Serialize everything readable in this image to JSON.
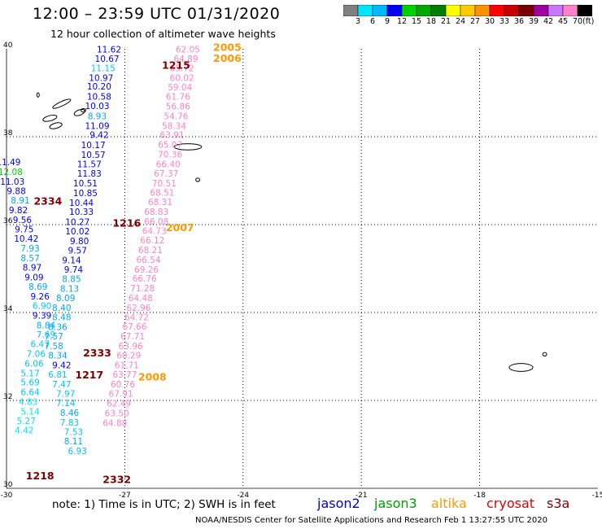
{
  "header": {
    "title": "12:00 – 23:59 UTC 01/31/2020",
    "subtitle": "12 hour collection of altimeter wave heights"
  },
  "legend": {
    "colors": [
      "#808080",
      "#00e5ff",
      "#00b8ff",
      "#0000ff",
      "#00d000",
      "#00a800",
      "#008000",
      "#ffff00",
      "#ffc800",
      "#ff9100",
      "#ff0000",
      "#c80000",
      "#780000",
      "#a000a0",
      "#c878ff",
      "#ff82c8",
      "#000000"
    ],
    "labels": [
      "3",
      "6",
      "9",
      "12",
      "15",
      "18",
      "21",
      "24",
      "27",
      "30",
      "33",
      "36",
      "39",
      "42",
      "45",
      "70"
    ],
    "unit": "(ft)"
  },
  "axes": {
    "x_ticks": [
      "-30",
      "-27",
      "-24",
      "-21",
      "-18",
      "-15"
    ],
    "y_ticks": [
      "40",
      "38",
      "36",
      "34",
      "32",
      "30"
    ]
  },
  "footer": {
    "note": "note: 1) Time is in UTC; 2) SWH is in feet",
    "credit": "NOAA/NESDIS Center for Satellite Applications and Research   Feb  1 13:27:55 UTC 2020"
  },
  "satellites": [
    {
      "name": "jason2",
      "color": "#0000d0"
    },
    {
      "name": "jason3",
      "color": "#00a000"
    },
    {
      "name": "altika",
      "color": "#ff9900"
    },
    {
      "name": "cryosat",
      "color": "#e00000"
    },
    {
      "name": "s3a",
      "color": "#800000"
    }
  ],
  "map_data": {
    "extent": {
      "lon": [
        -30,
        -15
      ],
      "lat": [
        30,
        40
      ]
    },
    "track_times": [
      {
        "text": "2005",
        "lon": -24.4,
        "lat": 39.95,
        "color": "#ff9900"
      },
      {
        "text": "2006",
        "lon": -24.4,
        "lat": 39.7,
        "color": "#ff9900"
      },
      {
        "text": "1215",
        "lon": -25.7,
        "lat": 39.55,
        "color": "#800000"
      },
      {
        "text": "2334",
        "lon": -28.95,
        "lat": 36.45,
        "color": "#800000"
      },
      {
        "text": "1216",
        "lon": -26.95,
        "lat": 35.95,
        "color": "#800000"
      },
      {
        "text": "2007",
        "lon": -25.6,
        "lat": 35.85,
        "color": "#ff9900"
      },
      {
        "text": "2333",
        "lon": -27.7,
        "lat": 33.0,
        "color": "#800000"
      },
      {
        "text": "1217",
        "lon": -27.9,
        "lat": 32.5,
        "color": "#800000"
      },
      {
        "text": "2008",
        "lon": -26.3,
        "lat": 32.45,
        "color": "#ff9900"
      },
      {
        "text": "1218",
        "lon": -29.15,
        "lat": 30.2,
        "color": "#800000"
      },
      {
        "text": "2332",
        "lon": -27.2,
        "lat": 30.12,
        "color": "#800000"
      }
    ],
    "swh_obs": [
      {
        "v": "11.62",
        "lon": -27.4,
        "lat": 39.92,
        "c": "#0000ff"
      },
      {
        "v": "10.67",
        "lon": -27.45,
        "lat": 39.7,
        "c": "#0000ff"
      },
      {
        "v": "11.15",
        "lon": -27.55,
        "lat": 39.49,
        "c": "#00c8ff"
      },
      {
        "v": "10.97",
        "lon": -27.6,
        "lat": 39.27,
        "c": "#0000ff"
      },
      {
        "v": "10.20",
        "lon": -27.65,
        "lat": 39.07,
        "c": "#0000ff"
      },
      {
        "v": "10.58",
        "lon": -27.65,
        "lat": 38.84,
        "c": "#0000ff"
      },
      {
        "v": "10.03",
        "lon": -27.7,
        "lat": 38.63,
        "c": "#0000ff"
      },
      {
        "v": "8.93",
        "lon": -27.7,
        "lat": 38.4,
        "c": "#00a8ff"
      },
      {
        "v": "11.09",
        "lon": -27.7,
        "lat": 38.18,
        "c": "#0000ff"
      },
      {
        "v": "9.42",
        "lon": -27.65,
        "lat": 37.97,
        "c": "#0000ff"
      },
      {
        "v": "10.17",
        "lon": -27.8,
        "lat": 37.74,
        "c": "#0000ff"
      },
      {
        "v": "10.57",
        "lon": -27.8,
        "lat": 37.52,
        "c": "#0000ff"
      },
      {
        "v": "11.57",
        "lon": -27.9,
        "lat": 37.31,
        "c": "#0000ff"
      },
      {
        "v": "11.83",
        "lon": -27.9,
        "lat": 37.09,
        "c": "#0000ff"
      },
      {
        "v": "10.51",
        "lon": -28.0,
        "lat": 36.87,
        "c": "#0000ff"
      },
      {
        "v": "10.85",
        "lon": -28.0,
        "lat": 36.65,
        "c": "#0000ff"
      },
      {
        "v": "10.44",
        "lon": -28.1,
        "lat": 36.43,
        "c": "#0000ff"
      },
      {
        "v": "10.33",
        "lon": -28.1,
        "lat": 36.22,
        "c": "#0000ff"
      },
      {
        "v": "10.27",
        "lon": -28.2,
        "lat": 35.99,
        "c": "#0000ff"
      },
      {
        "v": "10.02",
        "lon": -28.2,
        "lat": 35.78,
        "c": "#0000ff"
      },
      {
        "v": "9.80",
        "lon": -28.15,
        "lat": 35.56,
        "c": "#0000ff"
      },
      {
        "v": "9.57",
        "lon": -28.2,
        "lat": 35.34,
        "c": "#0000ff"
      },
      {
        "v": "9.14",
        "lon": -28.35,
        "lat": 35.12,
        "c": "#0000ff"
      },
      {
        "v": "9.74",
        "lon": -28.3,
        "lat": 34.91,
        "c": "#0000ff"
      },
      {
        "v": "8.85",
        "lon": -28.35,
        "lat": 34.69,
        "c": "#00a8ff"
      },
      {
        "v": "8.13",
        "lon": -28.4,
        "lat": 34.47,
        "c": "#00a8ff"
      },
      {
        "v": "8.09",
        "lon": -28.5,
        "lat": 34.26,
        "c": "#00a8ff"
      },
      {
        "v": "8.40",
        "lon": -28.6,
        "lat": 34.04,
        "c": "#00a8ff"
      },
      {
        "v": "8.48",
        "lon": -28.6,
        "lat": 33.82,
        "c": "#00a8ff"
      },
      {
        "v": "8.36",
        "lon": -28.7,
        "lat": 33.6,
        "c": "#00a8ff"
      },
      {
        "v": "7.57",
        "lon": -28.8,
        "lat": 33.39,
        "c": "#00a8ff"
      },
      {
        "v": "7.58",
        "lon": -28.8,
        "lat": 33.17,
        "c": "#00a8ff"
      },
      {
        "v": "8.34",
        "lon": -28.7,
        "lat": 32.95,
        "c": "#00a8ff"
      },
      {
        "v": "9.42",
        "lon": -28.6,
        "lat": 32.73,
        "c": "#0000ff"
      },
      {
        "v": "6.81",
        "lon": -28.7,
        "lat": 32.52,
        "c": "#00c8ff"
      },
      {
        "v": "7.47",
        "lon": -28.6,
        "lat": 32.3,
        "c": "#00c8ff"
      },
      {
        "v": "7.97",
        "lon": -28.5,
        "lat": 32.08,
        "c": "#00c8ff"
      },
      {
        "v": "7.14",
        "lon": -28.5,
        "lat": 31.87,
        "c": "#00c8ff"
      },
      {
        "v": "8.46",
        "lon": -28.4,
        "lat": 31.65,
        "c": "#00a8ff"
      },
      {
        "v": "7.83",
        "lon": -28.4,
        "lat": 31.43,
        "c": "#00c8ff"
      },
      {
        "v": "7.53",
        "lon": -28.3,
        "lat": 31.21,
        "c": "#00c8ff"
      },
      {
        "v": "8.11",
        "lon": -28.3,
        "lat": 31.0,
        "c": "#00a8ff"
      },
      {
        "v": "6.93",
        "lon": -28.2,
        "lat": 30.78,
        "c": "#00c8ff"
      },
      {
        "v": "11.49",
        "lon": -29.95,
        "lat": 37.35,
        "c": "#0000ff"
      },
      {
        "v": "12.08",
        "lon": -29.9,
        "lat": 37.13,
        "c": "#00d000"
      },
      {
        "v": "11.03",
        "lon": -29.85,
        "lat": 36.91,
        "c": "#0000ff"
      },
      {
        "v": "9.88",
        "lon": -29.75,
        "lat": 36.69,
        "c": "#0000ff"
      },
      {
        "v": "8.91",
        "lon": -29.65,
        "lat": 36.48,
        "c": "#00a8ff"
      },
      {
        "v": "9.82",
        "lon": -29.7,
        "lat": 36.26,
        "c": "#0000ff"
      },
      {
        "v": "9.56",
        "lon": -29.6,
        "lat": 36.04,
        "c": "#0000ff"
      },
      {
        "v": "9.75",
        "lon": -29.55,
        "lat": 35.82,
        "c": "#0000ff"
      },
      {
        "v": "10.42",
        "lon": -29.5,
        "lat": 35.61,
        "c": "#0000ff"
      },
      {
        "v": "7.93",
        "lon": -29.4,
        "lat": 35.39,
        "c": "#00a8ff"
      },
      {
        "v": "8.57",
        "lon": -29.4,
        "lat": 35.17,
        "c": "#00a8ff"
      },
      {
        "v": "8.97",
        "lon": -29.35,
        "lat": 34.95,
        "c": "#0000ff"
      },
      {
        "v": "9.09",
        "lon": -29.3,
        "lat": 34.73,
        "c": "#0000ff"
      },
      {
        "v": "8.69",
        "lon": -29.2,
        "lat": 34.52,
        "c": "#00a8ff"
      },
      {
        "v": "9.26",
        "lon": -29.15,
        "lat": 34.3,
        "c": "#0000ff"
      },
      {
        "v": "6.90",
        "lon": -29.1,
        "lat": 34.08,
        "c": "#00c8ff"
      },
      {
        "v": "9.39",
        "lon": -29.1,
        "lat": 33.86,
        "c": "#0000ff"
      },
      {
        "v": "8.84",
        "lon": -29.0,
        "lat": 33.64,
        "c": "#00a8ff"
      },
      {
        "v": "7.69",
        "lon": -29.0,
        "lat": 33.43,
        "c": "#00c8ff"
      },
      {
        "v": "6.47",
        "lon": -29.15,
        "lat": 33.21,
        "c": "#00c8ff"
      },
      {
        "v": "7.06",
        "lon": -29.25,
        "lat": 32.99,
        "c": "#00c8ff"
      },
      {
        "v": "6.06",
        "lon": -29.3,
        "lat": 32.77,
        "c": "#00c8ff"
      },
      {
        "v": "5.17",
        "lon": -29.4,
        "lat": 32.55,
        "c": "#00c8ff"
      },
      {
        "v": "5.69",
        "lon": -29.4,
        "lat": 32.34,
        "c": "#00c8ff"
      },
      {
        "v": "6.64",
        "lon": -29.4,
        "lat": 32.12,
        "c": "#00c8ff"
      },
      {
        "v": "4.83",
        "lon": -29.45,
        "lat": 31.9,
        "c": "#00e5ff"
      },
      {
        "v": "5.14",
        "lon": -29.4,
        "lat": 31.68,
        "c": "#00e5ff"
      },
      {
        "v": "5.27",
        "lon": -29.5,
        "lat": 31.46,
        "c": "#00e5ff"
      },
      {
        "v": "4.42",
        "lon": -29.55,
        "lat": 31.25,
        "c": "#00e5ff"
      },
      {
        "v": "62.05",
        "lon": -25.4,
        "lat": 39.92,
        "c": "#ff82c8"
      },
      {
        "v": "64.89",
        "lon": -25.45,
        "lat": 39.7,
        "c": "#ff82c8"
      },
      {
        "v": "65.72",
        "lon": -25.55,
        "lat": 39.49,
        "c": "#ff82c8"
      },
      {
        "v": "60.02",
        "lon": -25.55,
        "lat": 39.27,
        "c": "#ff82c8"
      },
      {
        "v": "59.04",
        "lon": -25.6,
        "lat": 39.06,
        "c": "#ff82c8"
      },
      {
        "v": "61.76",
        "lon": -25.65,
        "lat": 38.84,
        "c": "#ff82c8"
      },
      {
        "v": "56.86",
        "lon": -25.65,
        "lat": 38.62,
        "c": "#ff82c8"
      },
      {
        "v": "54.76",
        "lon": -25.7,
        "lat": 38.4,
        "c": "#ff82c8"
      },
      {
        "v": "58.34",
        "lon": -25.75,
        "lat": 38.18,
        "c": "#ff82c8"
      },
      {
        "v": "63.91",
        "lon": -25.8,
        "lat": 37.97,
        "c": "#ff82c8"
      },
      {
        "v": "65.07",
        "lon": -25.85,
        "lat": 37.75,
        "c": "#ff82c8"
      },
      {
        "v": "70.36",
        "lon": -25.85,
        "lat": 37.53,
        "c": "#ff82c8"
      },
      {
        "v": "66.40",
        "lon": -25.9,
        "lat": 37.31,
        "c": "#ff82c8"
      },
      {
        "v": "67.37",
        "lon": -25.95,
        "lat": 37.09,
        "c": "#ff82c8"
      },
      {
        "v": "70.51",
        "lon": -26.0,
        "lat": 36.87,
        "c": "#ff82c8"
      },
      {
        "v": "68.51",
        "lon": -26.05,
        "lat": 36.66,
        "c": "#ff82c8"
      },
      {
        "v": "68.31",
        "lon": -26.1,
        "lat": 36.44,
        "c": "#ff82c8"
      },
      {
        "v": "68.83",
        "lon": -26.2,
        "lat": 36.22,
        "c": "#ff82c8"
      },
      {
        "v": "66.08",
        "lon": -26.2,
        "lat": 36.0,
        "c": "#ff82c8"
      },
      {
        "v": "64.73",
        "lon": -26.25,
        "lat": 35.79,
        "c": "#ff82c8"
      },
      {
        "v": "66.12",
        "lon": -26.3,
        "lat": 35.57,
        "c": "#ff82c8"
      },
      {
        "v": "68.21",
        "lon": -26.35,
        "lat": 35.35,
        "c": "#ff82c8"
      },
      {
        "v": "66.54",
        "lon": -26.4,
        "lat": 35.13,
        "c": "#ff82c8"
      },
      {
        "v": "69.26",
        "lon": -26.45,
        "lat": 34.91,
        "c": "#ff82c8"
      },
      {
        "v": "66.76",
        "lon": -26.5,
        "lat": 34.7,
        "c": "#ff82c8"
      },
      {
        "v": "71.28",
        "lon": -26.55,
        "lat": 34.48,
        "c": "#ff82c8"
      },
      {
        "v": "64.48",
        "lon": -26.6,
        "lat": 34.26,
        "c": "#ff82c8"
      },
      {
        "v": "62.96",
        "lon": -26.65,
        "lat": 34.04,
        "c": "#ff82c8"
      },
      {
        "v": "64.72",
        "lon": -26.7,
        "lat": 33.82,
        "c": "#ff82c8"
      },
      {
        "v": "67.66",
        "lon": -26.75,
        "lat": 33.61,
        "c": "#ff82c8"
      },
      {
        "v": "67.71",
        "lon": -26.8,
        "lat": 33.39,
        "c": "#ff82c8"
      },
      {
        "v": "63.96",
        "lon": -26.85,
        "lat": 33.17,
        "c": "#ff82c8"
      },
      {
        "v": "60.29",
        "lon": -26.9,
        "lat": 32.95,
        "c": "#ff82c8"
      },
      {
        "v": "61.71",
        "lon": -26.95,
        "lat": 32.73,
        "c": "#ff82c8"
      },
      {
        "v": "63.77",
        "lon": -27.0,
        "lat": 32.52,
        "c": "#ff82c8"
      },
      {
        "v": "60.76",
        "lon": -27.05,
        "lat": 32.3,
        "c": "#ff82c8"
      },
      {
        "v": "67.91",
        "lon": -27.1,
        "lat": 32.08,
        "c": "#ff82c8"
      },
      {
        "v": "62.49",
        "lon": -27.15,
        "lat": 31.86,
        "c": "#ff82c8"
      },
      {
        "v": "63.50",
        "lon": -27.2,
        "lat": 31.64,
        "c": "#ff82c8"
      },
      {
        "v": "64.88",
        "lon": -27.25,
        "lat": 31.42,
        "c": "#ff82c8"
      }
    ],
    "islands": [
      {
        "lon": -28.6,
        "lat": 38.75,
        "rx": 0.25,
        "ry": 0.05,
        "rot": -25
      },
      {
        "lon": -28.15,
        "lat": 38.55,
        "rx": 0.14,
        "ry": 0.06,
        "rot": -20
      },
      {
        "lon": -28.9,
        "lat": 38.42,
        "rx": 0.18,
        "ry": 0.06,
        "rot": -15
      },
      {
        "lon": -28.75,
        "lat": 38.25,
        "rx": 0.16,
        "ry": 0.06,
        "rot": -15
      },
      {
        "lon": -28.05,
        "lat": 38.6,
        "rx": 0.06,
        "ry": 0.04,
        "rot": 0
      },
      {
        "lon": -29.2,
        "lat": 38.95,
        "rx": 0.03,
        "ry": 0.05,
        "rot": 0
      },
      {
        "lon": -25.4,
        "lat": 37.77,
        "rx": 0.35,
        "ry": 0.07,
        "rot": 0
      },
      {
        "lon": -25.15,
        "lat": 37.02,
        "rx": 0.05,
        "ry": 0.04,
        "rot": 0
      },
      {
        "lon": -16.95,
        "lat": 32.75,
        "rx": 0.3,
        "ry": 0.09,
        "rot": 0
      },
      {
        "lon": -16.35,
        "lat": 33.05,
        "rx": 0.05,
        "ry": 0.04,
        "rot": 0
      }
    ]
  }
}
